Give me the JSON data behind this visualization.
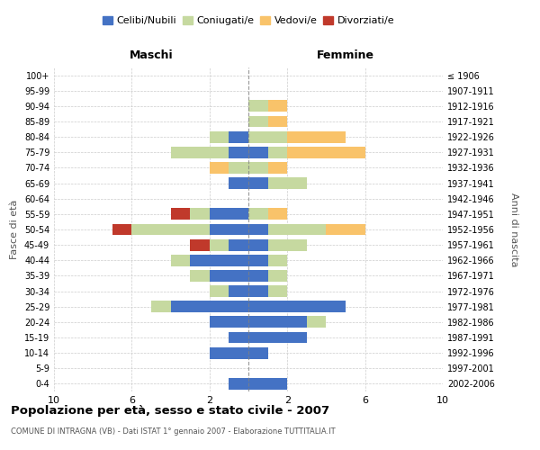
{
  "age_groups_bottom_to_top": [
    "0-4",
    "5-9",
    "10-14",
    "15-19",
    "20-24",
    "25-29",
    "30-34",
    "35-39",
    "40-44",
    "45-49",
    "50-54",
    "55-59",
    "60-64",
    "65-69",
    "70-74",
    "75-79",
    "80-84",
    "85-89",
    "90-94",
    "95-99",
    "100+"
  ],
  "birth_years_bottom_to_top": [
    "2002-2006",
    "1997-2001",
    "1992-1996",
    "1987-1991",
    "1982-1986",
    "1977-1981",
    "1972-1976",
    "1967-1971",
    "1962-1966",
    "1957-1961",
    "1952-1956",
    "1947-1951",
    "1942-1946",
    "1937-1941",
    "1932-1936",
    "1927-1931",
    "1922-1926",
    "1917-1921",
    "1912-1916",
    "1907-1911",
    "≤ 1906"
  ],
  "maschi": {
    "celibi": [
      1,
      0,
      2,
      1,
      2,
      4,
      1,
      2,
      3,
      1,
      2,
      2,
      0,
      1,
      0,
      1,
      1,
      0,
      0,
      0,
      0
    ],
    "coniugati": [
      0,
      0,
      0,
      0,
      0,
      1,
      1,
      1,
      1,
      1,
      4,
      1,
      0,
      0,
      1,
      3,
      1,
      0,
      0,
      0,
      0
    ],
    "vedovi": [
      0,
      0,
      0,
      0,
      0,
      0,
      0,
      0,
      0,
      0,
      0,
      0,
      0,
      0,
      1,
      0,
      0,
      0,
      0,
      0,
      0
    ],
    "divorziati": [
      0,
      0,
      0,
      0,
      0,
      0,
      0,
      0,
      0,
      1,
      1,
      1,
      0,
      0,
      0,
      0,
      0,
      0,
      0,
      0,
      0
    ]
  },
  "femmine": {
    "nubili": [
      2,
      0,
      1,
      3,
      3,
      5,
      1,
      1,
      1,
      1,
      1,
      0,
      0,
      1,
      0,
      1,
      0,
      0,
      0,
      0,
      0
    ],
    "coniugate": [
      0,
      0,
      0,
      0,
      1,
      0,
      1,
      1,
      1,
      2,
      3,
      1,
      0,
      2,
      1,
      1,
      2,
      1,
      1,
      0,
      0
    ],
    "vedove": [
      0,
      0,
      0,
      0,
      0,
      0,
      0,
      0,
      0,
      0,
      2,
      1,
      0,
      0,
      1,
      4,
      3,
      1,
      1,
      0,
      0
    ],
    "divorziate": [
      0,
      0,
      0,
      0,
      0,
      0,
      0,
      0,
      0,
      0,
      0,
      0,
      0,
      0,
      0,
      0,
      0,
      0,
      0,
      0,
      0
    ]
  },
  "colors": {
    "celibi_nubili": "#4472C4",
    "coniugati": "#C6D9A0",
    "vedovi": "#F9C36A",
    "divorziati": "#C0392B"
  },
  "title": "Popolazione per età, sesso e stato civile - 2007",
  "subtitle": "COMUNE DI INTRAGNA (VB) - Dati ISTAT 1° gennaio 2007 - Elaborazione TUTTITALIA.IT",
  "xlabel_left": "Maschi",
  "xlabel_right": "Femmine",
  "ylabel_left": "Fasce di età",
  "ylabel_right": "Anni di nascita",
  "legend_labels": [
    "Celibi/Nubili",
    "Coniugati/e",
    "Vedovi/e",
    "Divorziati/e"
  ],
  "xlim": 10,
  "xticks": [
    -10,
    -6,
    -2,
    2,
    6,
    10
  ],
  "background": "#ffffff"
}
